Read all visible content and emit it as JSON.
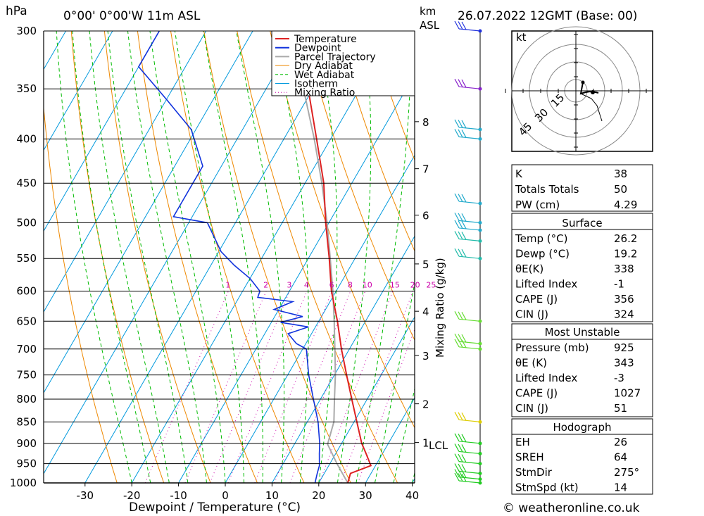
{
  "header": {
    "hpa": "hPa",
    "location": "0°00' 0°00'W  11m  ASL",
    "km": "km",
    "asl": "ASL",
    "datetime": "26.07.2022  12GMT  (Base: 00)"
  },
  "footer": {
    "credit": "© weatheronline.co.uk"
  },
  "chart_data": {
    "type": "skew-t",
    "xlabel": "Dewpoint / Temperature (°C)",
    "right_label": "Mixing Ratio (g/kg)",
    "pressure_levels": [
      300,
      350,
      400,
      450,
      500,
      550,
      600,
      650,
      700,
      750,
      800,
      850,
      900,
      950,
      1000
    ],
    "temperature_ticks": [
      -30,
      -20,
      -10,
      0,
      10,
      20,
      30,
      40
    ],
    "km_ticks": [
      {
        "label": "8",
        "p": 382
      },
      {
        "label": "7",
        "p": 433
      },
      {
        "label": "6",
        "p": 490
      },
      {
        "label": "5",
        "p": 558
      },
      {
        "label": "4",
        "p": 633
      },
      {
        "label": "3",
        "p": 712
      },
      {
        "label": "2",
        "p": 810
      },
      {
        "label": "1",
        "p": 898
      }
    ],
    "lcl": {
      "label": "LCL",
      "p": 902
    },
    "mixing_ratio_labels": [
      "1",
      "2",
      "3",
      "4",
      "6",
      "8",
      "10",
      "15",
      "20",
      "25"
    ],
    "mixing_ratio_values": [
      1,
      2,
      3,
      4,
      6,
      8,
      10,
      15,
      20,
      25
    ],
    "legend": [
      "Temperature",
      "Dewpoint",
      "Parcel Trajectory",
      "Dry Adiabat",
      "Wet Adiabat",
      "Isotherm",
      "Mixing Ratio"
    ],
    "colors": {
      "temperature": "#dd2222",
      "dewpoint": "#1133dd",
      "parcel": "#aaaaaa",
      "dry_adiabat": "#ee8800",
      "wet_adiabat": "#00bb00",
      "isotherm": "#0099dd",
      "mixing": "#cc00aa"
    },
    "temperature_profile": [
      [
        1000,
        26.2
      ],
      [
        975,
        25.6
      ],
      [
        955,
        29.0
      ],
      [
        925,
        26.5
      ],
      [
        900,
        24.3
      ],
      [
        850,
        20.6
      ],
      [
        800,
        16.7
      ],
      [
        750,
        12.6
      ],
      [
        700,
        8.3
      ],
      [
        650,
        4.0
      ],
      [
        600,
        -1.0
      ],
      [
        550,
        -5.5
      ],
      [
        500,
        -10.7
      ],
      [
        450,
        -16.0
      ],
      [
        400,
        -23.0
      ],
      [
        350,
        -31.0
      ],
      [
        300,
        -40.0
      ]
    ],
    "dewpoint_profile": [
      [
        1000,
        19.2
      ],
      [
        975,
        18.5
      ],
      [
        955,
        18.0
      ],
      [
        925,
        16.5
      ],
      [
        900,
        15.3
      ],
      [
        850,
        12.3
      ],
      [
        800,
        8.5
      ],
      [
        750,
        4.5
      ],
      [
        700,
        0.8
      ],
      [
        690,
        -2.0
      ],
      [
        672,
        -5.0
      ],
      [
        660,
        -1.5
      ],
      [
        652,
        -8.0
      ],
      [
        642,
        -4.0
      ],
      [
        630,
        -11.0
      ],
      [
        617,
        -8.0
      ],
      [
        610,
        -16.0
      ],
      [
        600,
        -16.3
      ],
      [
        580,
        -20.0
      ],
      [
        560,
        -25.0
      ],
      [
        540,
        -29.5
      ],
      [
        500,
        -36.0
      ],
      [
        492,
        -44.0
      ],
      [
        430,
        -44.0
      ],
      [
        390,
        -51.0
      ],
      [
        360,
        -60.0
      ],
      [
        330,
        -70.0
      ],
      [
        300,
        -70.0
      ]
    ],
    "parcel_profile": [
      [
        1000,
        26.2
      ],
      [
        950,
        21.5
      ],
      [
        902,
        17.1
      ],
      [
        850,
        15.7
      ],
      [
        800,
        13.0
      ],
      [
        750,
        10.2
      ],
      [
        700,
        6.9
      ],
      [
        650,
        3.3
      ],
      [
        600,
        -0.7
      ],
      [
        550,
        -5.3
      ],
      [
        500,
        -10.4
      ],
      [
        450,
        -16.4
      ],
      [
        400,
        -23.5
      ],
      [
        350,
        -32.0
      ],
      [
        300,
        -42.0
      ]
    ],
    "wind_barbs_pressure": [
      1000,
      990,
      975,
      950,
      925,
      900,
      850,
      700,
      690,
      650,
      550,
      525,
      510,
      500,
      475,
      400,
      390,
      350,
      300
    ]
  },
  "hodograph": {
    "unit": "kt",
    "ring_labels": [
      "15",
      "30",
      "45"
    ]
  },
  "indices": {
    "top": [
      {
        "label": "K",
        "value": "38"
      },
      {
        "label": "Totals Totals",
        "value": "50"
      },
      {
        "label": "PW (cm)",
        "value": "4.29"
      }
    ],
    "surface": {
      "title": "Surface",
      "rows": [
        {
          "label": "Temp (°C)",
          "value": "26.2"
        },
        {
          "label": "Dewp (°C)",
          "value": "19.2"
        },
        {
          "label": "θE(K)",
          "value": "338"
        },
        {
          "label": "Lifted Index",
          "value": "-1"
        },
        {
          "label": "CAPE (J)",
          "value": "356"
        },
        {
          "label": "CIN (J)",
          "value": "324"
        }
      ]
    },
    "most_unstable": {
      "title": "Most Unstable",
      "rows": [
        {
          "label": "Pressure (mb)",
          "value": "925"
        },
        {
          "label": "θE (K)",
          "value": "343"
        },
        {
          "label": "Lifted Index",
          "value": "-3"
        },
        {
          "label": "CAPE (J)",
          "value": "1027"
        },
        {
          "label": "CIN (J)",
          "value": "51"
        }
      ]
    },
    "hodograph_box": {
      "title": "Hodograph",
      "rows": [
        {
          "label": "EH",
          "value": "26"
        },
        {
          "label": "SREH",
          "value": "64"
        },
        {
          "label": "StmDir",
          "value": "275°"
        },
        {
          "label": "StmSpd (kt)",
          "value": "14"
        }
      ]
    }
  }
}
